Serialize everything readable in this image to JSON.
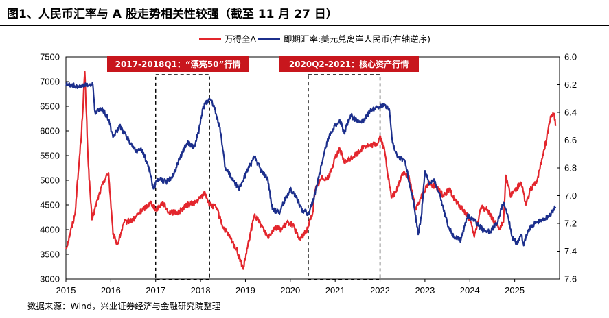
{
  "title": "图1、人民币汇率与 A 股走势相关性较强（截至 11 月 27 日）",
  "source": "数据来源：Wind，兴业证券经济与金融研究院整理",
  "colors": {
    "red": "#e3262d",
    "blue": "#1c2f8c",
    "annotation_bg": "#c8161d"
  },
  "chart_data": {
    "type": "line",
    "x_ticks": [
      "2015",
      "2016",
      "2017",
      "2018",
      "2019",
      "2020",
      "2021",
      "2022",
      "2023",
      "2024",
      "2025"
    ],
    "left_axis": {
      "ticks": [
        "3000",
        "3500",
        "4000",
        "4500",
        "5000",
        "5500",
        "6000",
        "6500",
        "7000",
        "7500"
      ],
      "range": [
        3000,
        7500
      ]
    },
    "right_axis": {
      "ticks": [
        "6.0",
        "6.2",
        "6.4",
        "6.6",
        "6.8",
        "7.0",
        "7.2",
        "7.4",
        "7.6"
      ],
      "range": [
        6.0,
        7.6
      ],
      "inverted": true
    },
    "legend_position": "top-center",
    "series": [
      {
        "name": "万得全A",
        "axis": "left",
        "color": "#e3262d",
        "points": [
          [
            2015.0,
            3600
          ],
          [
            2015.2,
            4300
          ],
          [
            2015.35,
            6000
          ],
          [
            2015.42,
            7200
          ],
          [
            2015.5,
            5300
          ],
          [
            2015.58,
            4200
          ],
          [
            2015.7,
            4600
          ],
          [
            2015.85,
            5000
          ],
          [
            2015.95,
            5150
          ],
          [
            2016.05,
            3900
          ],
          [
            2016.15,
            3700
          ],
          [
            2016.3,
            4150
          ],
          [
            2016.5,
            4200
          ],
          [
            2016.7,
            4400
          ],
          [
            2016.9,
            4550
          ],
          [
            2017.0,
            4400
          ],
          [
            2017.15,
            4550
          ],
          [
            2017.3,
            4350
          ],
          [
            2017.5,
            4350
          ],
          [
            2017.7,
            4500
          ],
          [
            2017.9,
            4550
          ],
          [
            2018.0,
            4650
          ],
          [
            2018.1,
            4750
          ],
          [
            2018.2,
            4500
          ],
          [
            2018.35,
            4450
          ],
          [
            2018.5,
            4050
          ],
          [
            2018.65,
            3850
          ],
          [
            2018.8,
            3600
          ],
          [
            2018.95,
            3200
          ],
          [
            2019.05,
            3650
          ],
          [
            2019.2,
            4300
          ],
          [
            2019.35,
            4100
          ],
          [
            2019.5,
            3850
          ],
          [
            2019.65,
            4050
          ],
          [
            2019.8,
            4000
          ],
          [
            2019.95,
            4150
          ],
          [
            2020.05,
            4100
          ],
          [
            2020.2,
            3800
          ],
          [
            2020.35,
            3950
          ],
          [
            2020.5,
            4350
          ],
          [
            2020.55,
            4800
          ],
          [
            2020.7,
            5050
          ],
          [
            2020.85,
            5050
          ],
          [
            2021.0,
            5450
          ],
          [
            2021.1,
            5650
          ],
          [
            2021.2,
            5350
          ],
          [
            2021.35,
            5450
          ],
          [
            2021.5,
            5550
          ],
          [
            2021.65,
            5700
          ],
          [
            2021.8,
            5700
          ],
          [
            2021.95,
            5750
          ],
          [
            2022.0,
            5900
          ],
          [
            2022.1,
            5600
          ],
          [
            2022.25,
            4650
          ],
          [
            2022.35,
            4750
          ],
          [
            2022.5,
            5150
          ],
          [
            2022.65,
            5050
          ],
          [
            2022.8,
            4400
          ],
          [
            2022.95,
            4750
          ],
          [
            2023.1,
            4950
          ],
          [
            2023.25,
            4850
          ],
          [
            2023.4,
            4700
          ],
          [
            2023.55,
            4800
          ],
          [
            2023.7,
            4550
          ],
          [
            2023.85,
            4400
          ],
          [
            2024.0,
            4200
          ],
          [
            2024.1,
            3850
          ],
          [
            2024.25,
            4450
          ],
          [
            2024.4,
            4400
          ],
          [
            2024.55,
            4150
          ],
          [
            2024.65,
            4000
          ],
          [
            2024.75,
            4150
          ],
          [
            2024.8,
            5100
          ],
          [
            2024.9,
            4700
          ],
          [
            2025.0,
            4800
          ],
          [
            2025.15,
            4950
          ],
          [
            2025.25,
            4500
          ],
          [
            2025.35,
            4800
          ],
          [
            2025.5,
            5000
          ],
          [
            2025.6,
            5400
          ],
          [
            2025.7,
            5800
          ],
          [
            2025.8,
            6300
          ],
          [
            2025.88,
            6350
          ],
          [
            2025.91,
            6100
          ]
        ]
      },
      {
        "name": "即期汇率:美元兑离岸人民币(右轴逆序)",
        "axis": "right",
        "color": "#1c2f8c",
        "points": [
          [
            2015.0,
            6.2
          ],
          [
            2015.3,
            6.21
          ],
          [
            2015.6,
            6.2
          ],
          [
            2015.65,
            6.4
          ],
          [
            2015.8,
            6.37
          ],
          [
            2015.95,
            6.45
          ],
          [
            2016.05,
            6.58
          ],
          [
            2016.2,
            6.5
          ],
          [
            2016.4,
            6.6
          ],
          [
            2016.55,
            6.68
          ],
          [
            2016.7,
            6.67
          ],
          [
            2016.85,
            6.8
          ],
          [
            2016.95,
            6.95
          ],
          [
            2017.05,
            6.88
          ],
          [
            2017.25,
            6.9
          ],
          [
            2017.4,
            6.85
          ],
          [
            2017.55,
            6.72
          ],
          [
            2017.7,
            6.62
          ],
          [
            2017.85,
            6.65
          ],
          [
            2017.95,
            6.55
          ],
          [
            2018.05,
            6.37
          ],
          [
            2018.2,
            6.3
          ],
          [
            2018.3,
            6.35
          ],
          [
            2018.45,
            6.55
          ],
          [
            2018.55,
            6.8
          ],
          [
            2018.7,
            6.87
          ],
          [
            2018.85,
            6.95
          ],
          [
            2019.0,
            6.85
          ],
          [
            2019.2,
            6.72
          ],
          [
            2019.35,
            6.82
          ],
          [
            2019.5,
            6.88
          ],
          [
            2019.6,
            7.1
          ],
          [
            2019.75,
            7.12
          ],
          [
            2019.85,
            7.05
          ],
          [
            2020.0,
            6.95
          ],
          [
            2020.15,
            7.02
          ],
          [
            2020.25,
            7.1
          ],
          [
            2020.4,
            7.13
          ],
          [
            2020.5,
            7.05
          ],
          [
            2020.6,
            6.92
          ],
          [
            2020.75,
            6.7
          ],
          [
            2020.85,
            6.58
          ],
          [
            2020.95,
            6.52
          ],
          [
            2021.1,
            6.45
          ],
          [
            2021.2,
            6.55
          ],
          [
            2021.35,
            6.42
          ],
          [
            2021.5,
            6.47
          ],
          [
            2021.65,
            6.45
          ],
          [
            2021.8,
            6.38
          ],
          [
            2021.95,
            6.36
          ],
          [
            2022.1,
            6.35
          ],
          [
            2022.2,
            6.37
          ],
          [
            2022.28,
            6.62
          ],
          [
            2022.4,
            6.72
          ],
          [
            2022.55,
            6.75
          ],
          [
            2022.65,
            6.9
          ],
          [
            2022.75,
            7.05
          ],
          [
            2022.85,
            7.28
          ],
          [
            2022.92,
            7.15
          ],
          [
            2023.0,
            6.82
          ],
          [
            2023.1,
            6.92
          ],
          [
            2023.2,
            6.88
          ],
          [
            2023.35,
            7.02
          ],
          [
            2023.5,
            7.2
          ],
          [
            2023.65,
            7.3
          ],
          [
            2023.8,
            7.32
          ],
          [
            2023.95,
            7.14
          ],
          [
            2024.1,
            7.18
          ],
          [
            2024.3,
            7.25
          ],
          [
            2024.45,
            7.26
          ],
          [
            2024.6,
            7.2
          ],
          [
            2024.7,
            7.1
          ],
          [
            2024.75,
            7.05
          ],
          [
            2024.85,
            7.15
          ],
          [
            2024.95,
            7.3
          ],
          [
            2025.05,
            7.35
          ],
          [
            2025.15,
            7.28
          ],
          [
            2025.2,
            7.36
          ],
          [
            2025.3,
            7.25
          ],
          [
            2025.45,
            7.2
          ],
          [
            2025.6,
            7.18
          ],
          [
            2025.75,
            7.15
          ],
          [
            2025.88,
            7.1
          ],
          [
            2025.91,
            7.08
          ]
        ]
      }
    ],
    "annotations": [
      {
        "label": "2017-2018Q1：“漂亮50”行情",
        "x_start": 2017.0,
        "x_end": 2018.2
      },
      {
        "label": "2020Q2-2021：核心资产行情",
        "x_start": 2020.4,
        "x_end": 2022.0
      }
    ]
  }
}
